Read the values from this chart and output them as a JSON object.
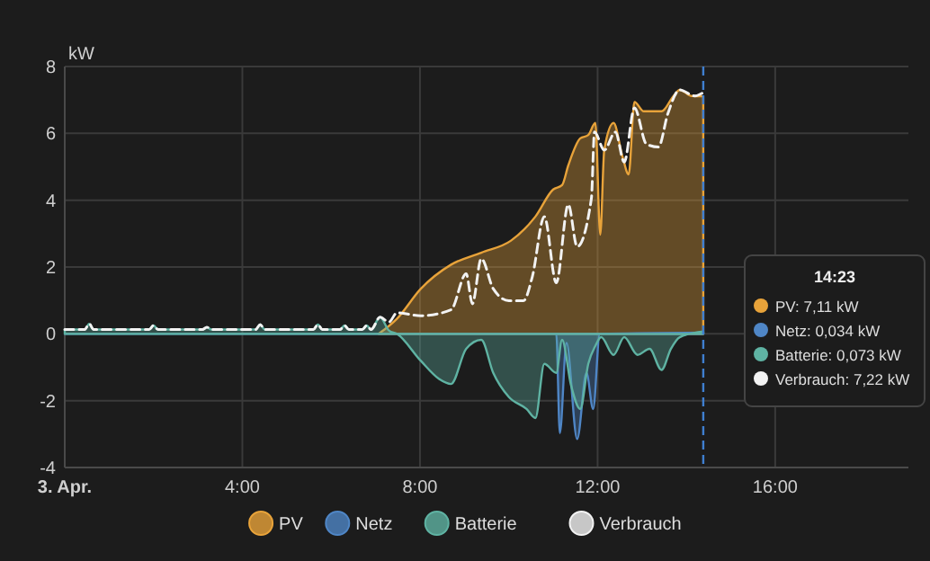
{
  "chart_data": {
    "type": "area",
    "ylabel": "kW",
    "xlim": [
      0,
      19
    ],
    "ylim": [
      -4,
      8
    ],
    "xticks": [
      {
        "value": 0,
        "label": "3. Apr."
      },
      {
        "value": 4,
        "label": "4:00"
      },
      {
        "value": 8,
        "label": "8:00"
      },
      {
        "value": 12,
        "label": "12:00"
      },
      {
        "value": 16,
        "label": "16:00"
      }
    ],
    "yticks": [
      -4,
      -2,
      0,
      2,
      4,
      6,
      8
    ],
    "grid": true,
    "legend": "bottom",
    "ref_lines": [
      {
        "axis": "x",
        "value": 14.38,
        "color": "#3f7fd0",
        "line_style": "dashed"
      }
    ],
    "annotations": [
      "14:23",
      "PV: 7,11 kW",
      "Netz: 0,034 kW",
      "Batterie: 0,073 kW",
      "Verbrauch: 7,22 kW"
    ],
    "series": [
      {
        "name": "PV",
        "color": "#e8a33a",
        "x": [
          7.07,
          7.48,
          8.02,
          8.7,
          9.38,
          10.05,
          10.6,
          11.0,
          11.2,
          11.34,
          11.61,
          11.79,
          11.95,
          12.06,
          12.15,
          12.36,
          12.56,
          12.7,
          12.83,
          13.04,
          13.44,
          13.71,
          13.85,
          14.12,
          14.38
        ],
        "values": [
          0,
          0.45,
          1.35,
          2.07,
          2.43,
          2.79,
          3.51,
          4.32,
          4.45,
          5.04,
          5.85,
          5.95,
          6.31,
          2.97,
          5.5,
          6.31,
          5.31,
          4.77,
          6.94,
          6.66,
          6.66,
          7.12,
          7.3,
          7.12,
          7.11
        ]
      },
      {
        "name": "Netz",
        "color": "#4f86c6",
        "x": [
          0,
          11.07,
          11.15,
          11.3,
          11.54,
          11.75,
          11.9,
          12.05,
          14.38
        ],
        "values": [
          0,
          0,
          -2.97,
          -0.27,
          -3.15,
          -1.17,
          -2.25,
          0,
          0.034
        ]
      },
      {
        "name": "Batterie",
        "color": "#5fb3a3",
        "x": [
          0,
          0.45,
          0.55,
          0.65,
          1.9,
          2.0,
          2.1,
          3.1,
          3.2,
          3.3,
          4.3,
          4.4,
          4.5,
          5.6,
          5.7,
          5.8,
          6.2,
          6.3,
          6.4,
          6.7,
          6.8,
          6.9,
          7.1,
          7.3,
          7.48,
          8.02,
          8.43,
          8.7,
          9.04,
          9.38,
          9.65,
          10.0,
          10.4,
          10.6,
          10.8,
          11.07,
          11.2,
          11.4,
          11.61,
          11.79,
          11.95,
          12.08,
          12.36,
          12.6,
          12.9,
          13.17,
          13.44,
          13.65,
          13.85,
          14.38
        ],
        "values": [
          0.13,
          0.13,
          0.3,
          0.13,
          0.13,
          0.25,
          0.13,
          0.13,
          0.2,
          0.13,
          0.13,
          0.28,
          0.13,
          0.13,
          0.28,
          0.13,
          0.13,
          0.25,
          0.13,
          0.13,
          0.25,
          0.13,
          0.5,
          0.1,
          0,
          -0.81,
          -1.35,
          -1.5,
          -0.45,
          -0.18,
          -1.17,
          -1.89,
          -2.25,
          -2.52,
          -0.9,
          -1.17,
          -0.18,
          -1.53,
          -2.25,
          -0.9,
          -0.36,
          -0.1,
          -0.63,
          -0.1,
          -0.63,
          -0.45,
          -1.08,
          -0.45,
          -0.1,
          0.073
        ]
      },
      {
        "name": "Verbrauch",
        "type": "line",
        "color": "#f2f2f2",
        "line_style": "dashed",
        "x": [
          0,
          0.45,
          0.55,
          0.65,
          1.9,
          2.0,
          2.1,
          3.1,
          3.2,
          3.3,
          4.3,
          4.4,
          4.5,
          5.6,
          5.7,
          5.8,
          6.2,
          6.3,
          6.4,
          6.7,
          6.8,
          6.9,
          7.1,
          7.3,
          7.48,
          8.02,
          8.7,
          9.04,
          9.18,
          9.38,
          9.65,
          10.0,
          10.33,
          10.53,
          10.8,
          11.07,
          11.34,
          11.54,
          11.86,
          11.93,
          12.15,
          12.4,
          12.6,
          12.83,
          13.1,
          13.37,
          13.58,
          13.85,
          14.19,
          14.38
        ],
        "values": [
          0.13,
          0.13,
          0.3,
          0.13,
          0.13,
          0.25,
          0.13,
          0.13,
          0.2,
          0.13,
          0.13,
          0.28,
          0.13,
          0.13,
          0.28,
          0.13,
          0.13,
          0.25,
          0.13,
          0.13,
          0.25,
          0.13,
          0.5,
          0.35,
          0.63,
          0.54,
          0.72,
          1.8,
          0.9,
          2.25,
          1.35,
          0.99,
          0.99,
          1.71,
          3.51,
          1.53,
          3.87,
          2.61,
          4.05,
          6.04,
          5.5,
          6.04,
          5.14,
          6.76,
          5.68,
          5.59,
          6.58,
          7.3,
          7.12,
          7.22
        ]
      }
    ]
  }
}
